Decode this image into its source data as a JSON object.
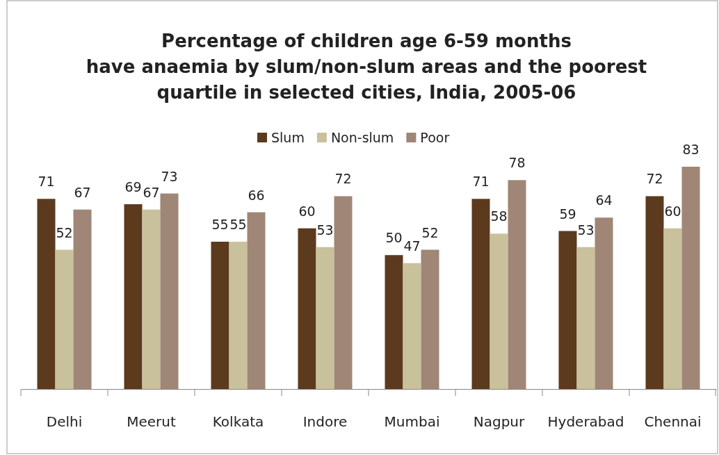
{
  "chart_data": {
    "type": "bar",
    "title": "Percentage of children age 6-59 months\nhave anaemia by slum/non-slum areas and the poorest\nquartile in selected cities, India, 2005-06",
    "categories": [
      "Delhi",
      "Meerut",
      "Kolkata",
      "Indore",
      "Mumbai",
      "Nagpur",
      "Hyderabad",
      "Chennai"
    ],
    "series": [
      {
        "name": "Slum",
        "color": "#5c3a1e",
        "values": [
          71,
          69,
          55,
          60,
          50,
          71,
          59,
          72
        ]
      },
      {
        "name": "Non-slum",
        "color": "#c9c19b",
        "values": [
          52,
          67,
          55,
          53,
          47,
          58,
          53,
          60
        ]
      },
      {
        "name": "Poor",
        "color": "#a08676",
        "values": [
          67,
          73,
          66,
          72,
          52,
          78,
          64,
          83
        ]
      }
    ],
    "data_labels": true,
    "legend": "top"
  }
}
